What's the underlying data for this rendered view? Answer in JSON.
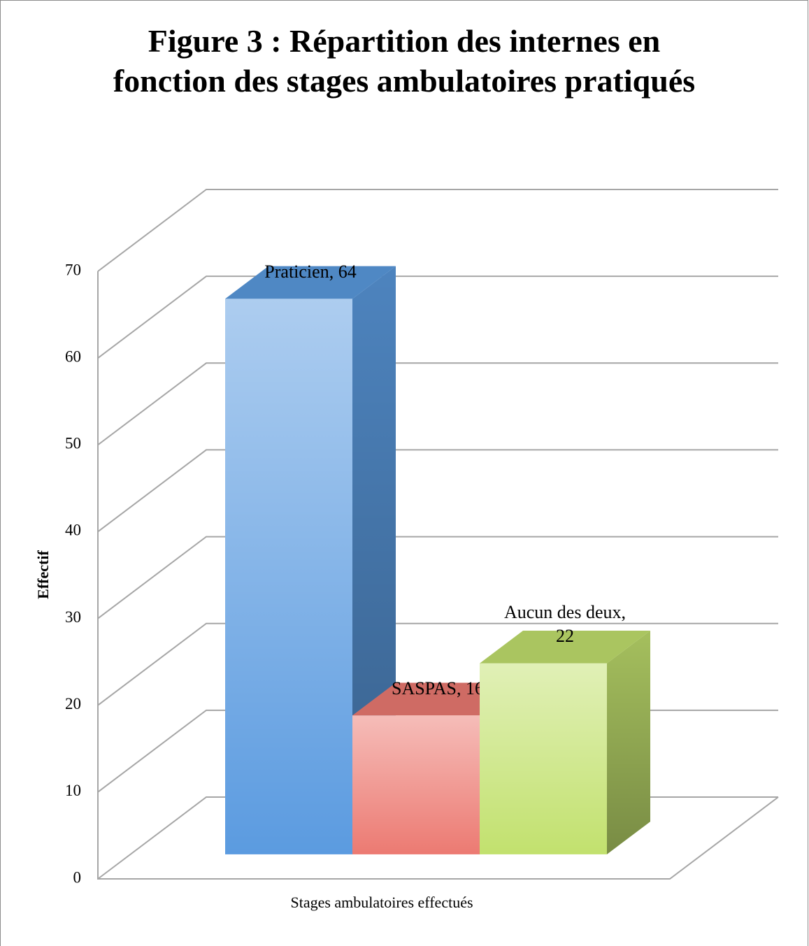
{
  "chart_data": {
    "type": "bar3d",
    "title": "Figure 3 : Répartition des internes en fonction des stages ambulatoires pratiqués",
    "x_label": "Stages ambulatoires effectués",
    "y_label": "Effectif",
    "categories": [
      null
    ],
    "series": [
      {
        "name": "Praticien",
        "color": "#5b9be0",
        "values": [
          64
        ],
        "value_labels": [
          "Praticien, 64"
        ]
      },
      {
        "name": "SASPAS",
        "color": "#ec7a72",
        "values": [
          16
        ],
        "value_labels": [
          "SASPAS, 16"
        ]
      },
      {
        "name": "Aucun des deux",
        "color": "#c2e16e",
        "values": [
          22
        ],
        "value_labels": [
          "Aucun des deux, 22"
        ]
      }
    ],
    "ylim": [
      0,
      70
    ],
    "yticks": [
      0,
      10,
      20,
      30,
      40,
      50,
      60,
      70
    ],
    "grid": true
  }
}
